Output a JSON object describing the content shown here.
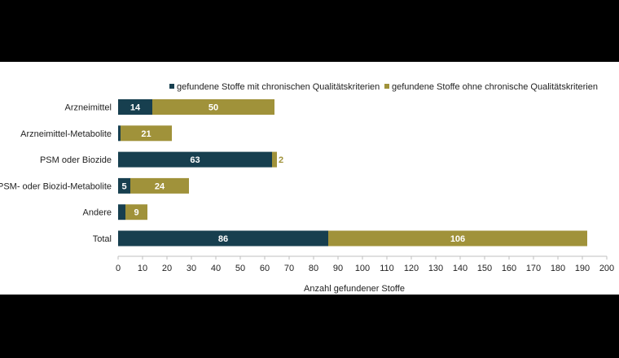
{
  "chart_data": {
    "type": "bar",
    "orientation": "horizontal",
    "stacked": true,
    "title": "",
    "xlabel": "Anzahl gefundener Stoffe",
    "ylabel": "",
    "xlim": [
      0,
      200
    ],
    "xticks": [
      0,
      10,
      20,
      30,
      40,
      50,
      60,
      70,
      80,
      90,
      100,
      110,
      120,
      130,
      140,
      150,
      160,
      170,
      180,
      190,
      200
    ],
    "categories": [
      "Arzneimittel",
      "Arzneimittel-Metabolite",
      "PSM oder Biozide",
      "PSM- oder Biozid-Metabolite",
      "Andere",
      "Total"
    ],
    "series": [
      {
        "name": "gefundene Stoffe mit chronischen Qualitätskriterien",
        "color": "#173f4f",
        "label_color": "#ffffff",
        "values": [
          14,
          1,
          63,
          5,
          3,
          86
        ]
      },
      {
        "name": "gefundene Stoffe ohne chronische Qualitätskriterien",
        "color": "#a0923a",
        "label_color": "#ffffff",
        "values": [
          50,
          21,
          2,
          24,
          9,
          106
        ]
      }
    ],
    "legend_position": "top",
    "grid": false
  }
}
